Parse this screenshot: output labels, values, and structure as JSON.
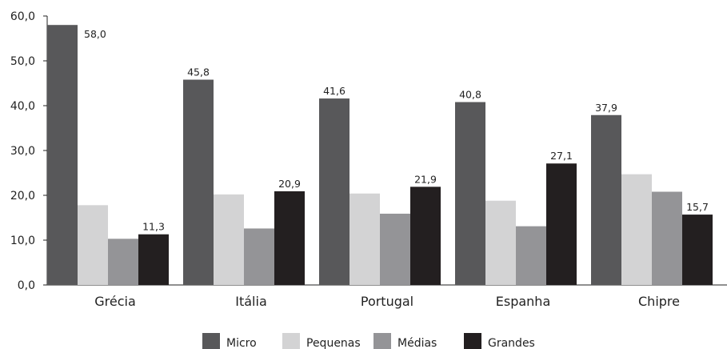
{
  "chart_data": {
    "type": "bar",
    "categories": [
      "Grécia",
      "Itália",
      "Portugal",
      "Espanha",
      "Chipre"
    ],
    "series": [
      {
        "name": "Micro",
        "values": [
          58.0,
          45.8,
          41.6,
          40.8,
          37.9
        ],
        "labels": [
          "58,0",
          "45,8",
          "41,6",
          "40,8",
          "37,9"
        ],
        "color": "#58585a"
      },
      {
        "name": "Pequenas",
        "values": [
          17.8,
          20.2,
          20.4,
          18.8,
          24.7
        ],
        "labels": [
          "",
          "",
          "",
          "",
          ""
        ],
        "color": "#d3d3d4"
      },
      {
        "name": "Médias",
        "values": [
          10.3,
          12.6,
          15.9,
          13.1,
          20.8
        ],
        "labels": [
          "",
          "",
          "",
          "",
          ""
        ],
        "color": "#949497"
      },
      {
        "name": "Grandes",
        "values": [
          11.3,
          20.9,
          21.9,
          27.1,
          15.7
        ],
        "labels": [
          "11,3",
          "20,9",
          "21,9",
          "27,1",
          "15,7"
        ],
        "color": "#231f20"
      }
    ],
    "y_ticks": [
      "0,0",
      "10,0",
      "20,0",
      "30,0",
      "40,0",
      "50,0",
      "60,0"
    ],
    "ylim": [
      0,
      60
    ],
    "grid": false,
    "legend_position": "bottom"
  }
}
